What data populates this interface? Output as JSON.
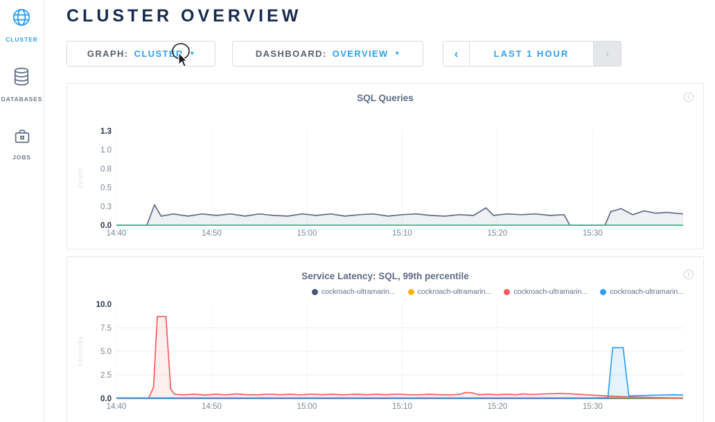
{
  "sidebar": {
    "items": [
      {
        "label": "CLUSTER",
        "icon": "globe-icon",
        "active": true
      },
      {
        "label": "DATABASES",
        "icon": "database-icon",
        "active": false
      },
      {
        "label": "JOBS",
        "icon": "briefcase-icon",
        "active": false
      }
    ]
  },
  "header": {
    "title": "CLUSTER OVERVIEW"
  },
  "controls": {
    "graph": {
      "label": "GRAPH:",
      "value": "CLUSTER",
      "caret": "▾"
    },
    "dashboard": {
      "label": "DASHBOARD:",
      "value": "OVERVIEW",
      "caret": "▾"
    },
    "timewindow": {
      "prev": "‹",
      "label": "LAST 1 HOUR",
      "next": "›"
    }
  },
  "info_glyph": "i",
  "colors": {
    "accent_blue": "#2ea1f3",
    "header_navy": "#152a4e",
    "green_line": "#2ebd8d",
    "gray_series": "#5f6c87",
    "red_series": "#f25b5b",
    "yellow_series": "#fdb515",
    "navy_series": "#475872",
    "blue_series": "#2ea1f3"
  },
  "chart_data": [
    {
      "type": "area",
      "title": "SQL Queries",
      "ylabel": "count",
      "ymax": 1.25,
      "xmax": 59.5,
      "ylim": [
        0,
        1.3
      ],
      "grid_y": [],
      "y_ticks": [
        {
          "label": "0.0",
          "bold": true
        },
        {
          "label": "0.3",
          "bold": false
        },
        {
          "label": "0.5",
          "bold": false
        },
        {
          "label": "0.8",
          "bold": false
        },
        {
          "label": "1.0",
          "bold": false
        },
        {
          "label": "1.3",
          "bold": true
        }
      ],
      "x_ticks": [
        {
          "t": 0,
          "label": "14:40"
        },
        {
          "t": 10,
          "label": "14:50"
        },
        {
          "t": 20,
          "label": "15:00"
        },
        {
          "t": 30,
          "label": "15:10"
        },
        {
          "t": 40,
          "label": "15:20"
        },
        {
          "t": 50,
          "label": "15:30"
        }
      ],
      "series": [
        {
          "name": "sql-queries",
          "color": "#5f6c87",
          "fill": "rgba(95,108,135,0.10)",
          "width": 1.7,
          "points": [
            [
              0,
              0
            ],
            [
              3.2,
              0
            ],
            [
              4.0,
              0.27
            ],
            [
              4.7,
              0.12
            ],
            [
              6,
              0.15
            ],
            [
              7.5,
              0.12
            ],
            [
              9,
              0.15
            ],
            [
              10.5,
              0.13
            ],
            [
              12,
              0.15
            ],
            [
              13.5,
              0.12
            ],
            [
              15,
              0.15
            ],
            [
              16.5,
              0.13
            ],
            [
              18,
              0.12
            ],
            [
              19.5,
              0.15
            ],
            [
              21,
              0.13
            ],
            [
              22.5,
              0.15
            ],
            [
              24,
              0.12
            ],
            [
              25.5,
              0.14
            ],
            [
              27,
              0.15
            ],
            [
              28.5,
              0.12
            ],
            [
              30,
              0.14
            ],
            [
              31.5,
              0.15
            ],
            [
              33,
              0.13
            ],
            [
              34.5,
              0.12
            ],
            [
              36,
              0.14
            ],
            [
              37.5,
              0.13
            ],
            [
              38.8,
              0.23
            ],
            [
              39.6,
              0.13
            ],
            [
              41,
              0.15
            ],
            [
              42.5,
              0.14
            ],
            [
              44,
              0.15
            ],
            [
              45.5,
              0.13
            ],
            [
              47,
              0.14
            ],
            [
              47.6,
              0
            ],
            [
              51.3,
              0
            ],
            [
              51.9,
              0.18
            ],
            [
              53,
              0.22
            ],
            [
              54.2,
              0.14
            ],
            [
              55.4,
              0.19
            ],
            [
              56.6,
              0.16
            ],
            [
              57.8,
              0.17
            ],
            [
              59.5,
              0.15
            ]
          ]
        },
        {
          "name": "baseline-zero",
          "color": "#2ebd8d",
          "width": 1.7,
          "points": [
            [
              0,
              0
            ],
            [
              59.5,
              0
            ]
          ]
        }
      ]
    },
    {
      "type": "area",
      "title": "Service Latency: SQL, 99th percentile",
      "ylabel": "seconds",
      "ymax": 10,
      "xmax": 59.5,
      "ylim": [
        0,
        10
      ],
      "grid_y": [
        2.5,
        5.0,
        7.5
      ],
      "legend": [
        {
          "label": "cockroach-ultramarin...",
          "color": "#475872"
        },
        {
          "label": "cockroach-ultramarin...",
          "color": "#fdb515"
        },
        {
          "label": "cockroach-ultramarin...",
          "color": "#f25b5b"
        },
        {
          "label": "cockroach-ultramarin...",
          "color": "#2ea1f3"
        }
      ],
      "y_ticks": [
        {
          "label": "0.0",
          "bold": true
        },
        {
          "label": "2.5",
          "bold": false
        },
        {
          "label": "5.0",
          "bold": false
        },
        {
          "label": "7.5",
          "bold": false
        },
        {
          "label": "10.0",
          "bold": true
        }
      ],
      "x_ticks": [
        {
          "t": 0,
          "label": "14:40"
        },
        {
          "t": 10,
          "label": "14:50"
        },
        {
          "t": 20,
          "label": "15:00"
        },
        {
          "t": 30,
          "label": "15:10"
        },
        {
          "t": 40,
          "label": "15:20"
        },
        {
          "t": 50,
          "label": "15:30"
        }
      ],
      "series": [
        {
          "name": "node-1-navy",
          "color": "#475872",
          "width": 1.4,
          "points": [
            [
              0,
              0
            ],
            [
              59.5,
              0
            ]
          ]
        },
        {
          "name": "node-2-yellow",
          "color": "#fdb515",
          "fill": "rgba(253,181,21,0.12)",
          "width": 1.6,
          "points": [
            [
              51.3,
              0.12
            ],
            [
              53.5,
              0.09
            ],
            [
              55.5,
              0.06
            ],
            [
              57.5,
              0.03
            ],
            [
              59.5,
              0.01
            ]
          ]
        },
        {
          "name": "node-3-red",
          "color": "#f25b5b",
          "fill": "rgba(242,91,91,0.10)",
          "width": 1.7,
          "points": [
            [
              0,
              0.02
            ],
            [
              3.4,
              0.05
            ],
            [
              3.9,
              1.2
            ],
            [
              4.3,
              8.7
            ],
            [
              5.2,
              8.7
            ],
            [
              5.7,
              1.0
            ],
            [
              6.1,
              0.45
            ],
            [
              7,
              0.38
            ],
            [
              8.2,
              0.45
            ],
            [
              9.3,
              0.36
            ],
            [
              10.4,
              0.45
            ],
            [
              11.5,
              0.38
            ],
            [
              12.6,
              0.48
            ],
            [
              13.7,
              0.4
            ],
            [
              14.8,
              0.38
            ],
            [
              16,
              0.46
            ],
            [
              17.2,
              0.4
            ],
            [
              18.3,
              0.44
            ],
            [
              19.4,
              0.38
            ],
            [
              20.5,
              0.46
            ],
            [
              21.6,
              0.4
            ],
            [
              22.7,
              0.44
            ],
            [
              23.8,
              0.38
            ],
            [
              25,
              0.45
            ],
            [
              26.2,
              0.4
            ],
            [
              27.3,
              0.44
            ],
            [
              28.4,
              0.4
            ],
            [
              29.5,
              0.46
            ],
            [
              30.6,
              0.4
            ],
            [
              31.7,
              0.38
            ],
            [
              32.8,
              0.44
            ],
            [
              34,
              0.4
            ],
            [
              35,
              0.38
            ],
            [
              36,
              0.42
            ],
            [
              36.7,
              0.64
            ],
            [
              37.4,
              0.58
            ],
            [
              38,
              0.4
            ],
            [
              39,
              0.44
            ],
            [
              40,
              0.4
            ],
            [
              41,
              0.44
            ],
            [
              42,
              0.4
            ],
            [
              42.7,
              0.48
            ],
            [
              43.5,
              0.42
            ],
            [
              44.5,
              0.46
            ],
            [
              45.5,
              0.5
            ],
            [
              46.5,
              0.54
            ],
            [
              47.5,
              0.5
            ],
            [
              48.5,
              0.44
            ],
            [
              49.5,
              0.38
            ],
            [
              50.5,
              0.32
            ],
            [
              51.5,
              0.26
            ],
            [
              52.5,
              0.22
            ],
            [
              53.5,
              0.18
            ],
            [
              54.5,
              0.14
            ],
            [
              55.5,
              0.11
            ],
            [
              56.5,
              0.09
            ],
            [
              57.5,
              0.07
            ],
            [
              58.5,
              0.05
            ],
            [
              59.5,
              0.04
            ]
          ]
        },
        {
          "name": "node-4-blue",
          "color": "#2ea1f3",
          "fill": "rgba(46,161,243,0.13)",
          "width": 1.7,
          "points": [
            [
              0,
              0.06
            ],
            [
              10,
              0.06
            ],
            [
              20,
              0.06
            ],
            [
              30,
              0.06
            ],
            [
              40,
              0.06
            ],
            [
              50,
              0.06
            ],
            [
              51.6,
              0.07
            ],
            [
              52.1,
              5.4
            ],
            [
              53.2,
              5.4
            ],
            [
              53.8,
              0.28
            ],
            [
              55,
              0.3
            ],
            [
              56.2,
              0.33
            ],
            [
              57.5,
              0.38
            ],
            [
              58.5,
              0.4
            ],
            [
              59.5,
              0.37
            ]
          ]
        }
      ]
    }
  ]
}
